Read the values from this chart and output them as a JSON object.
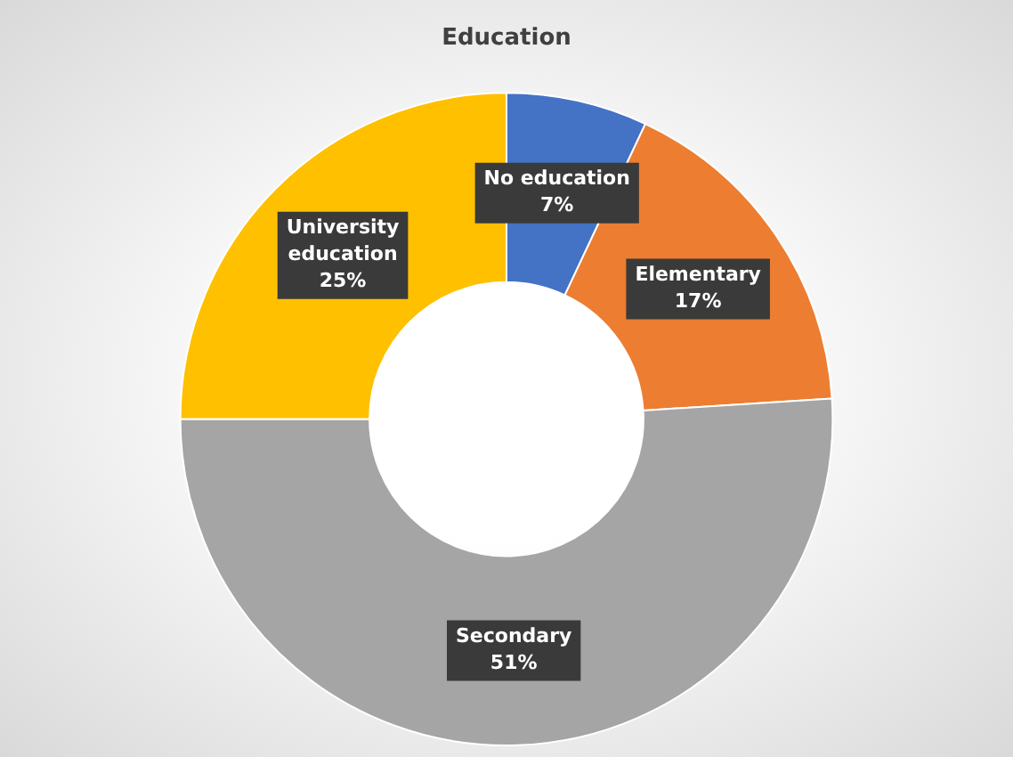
{
  "chart_data": {
    "type": "donut",
    "title": "Education",
    "categories": [
      "No education",
      "Elementary",
      "Secondary",
      "University education"
    ],
    "values": [
      7,
      17,
      51,
      25
    ],
    "colors": [
      "#4472c4",
      "#ed7d31",
      "#a5a5a5",
      "#ffc000"
    ],
    "value_labels": [
      "7%",
      "17%",
      "51%",
      "25%"
    ],
    "legend": false
  }
}
